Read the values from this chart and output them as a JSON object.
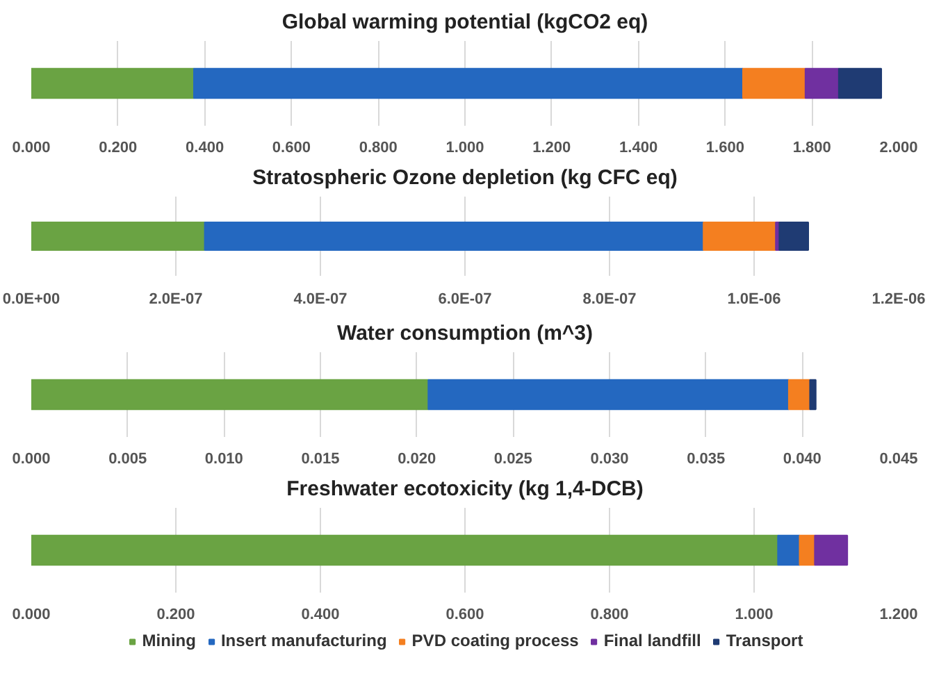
{
  "chart_data": [
    {
      "type": "bar",
      "orientation": "horizontal",
      "stacked": true,
      "title": "Global warming potential (kgCO2 eq)",
      "categories": [
        null
      ],
      "xlim": [
        0,
        2.0
      ],
      "xticks": [
        {
          "value": 0,
          "label": "0.000"
        },
        {
          "value": 0.2,
          "label": "0.200"
        },
        {
          "value": 0.4,
          "label": "0.400"
        },
        {
          "value": 0.6,
          "label": "0.600"
        },
        {
          "value": 0.8,
          "label": "0.800"
        },
        {
          "value": 1.0,
          "label": "1.000"
        },
        {
          "value": 1.2,
          "label": "1.200"
        },
        {
          "value": 1.4,
          "label": "1.400"
        },
        {
          "value": 1.6,
          "label": "1.600"
        },
        {
          "value": 1.8,
          "label": "1.800"
        },
        {
          "value": 2.0,
          "label": "2.000"
        }
      ],
      "grid": "x",
      "tick_labels": "x",
      "legend": false,
      "series": [
        {
          "color": "#6aa343",
          "values": [
            0.375
          ]
        },
        {
          "color": "#2468c0",
          "values": [
            1.266
          ]
        },
        {
          "color": "#f47f20",
          "values": [
            0.144
          ]
        },
        {
          "color": "#7030a0",
          "values": [
            0.077
          ]
        },
        {
          "color": "#1f3b73",
          "values": [
            0.098
          ]
        }
      ]
    },
    {
      "type": "bar",
      "orientation": "horizontal",
      "stacked": true,
      "title": "Stratospheric Ozone depletion (kg CFC eq)",
      "categories": [
        null
      ],
      "xlim": [
        0,
        1.2e-06
      ],
      "xticks": [
        {
          "value": 0,
          "label": "0.0E+00"
        },
        {
          "value": 2e-07,
          "label": "2.0E-07"
        },
        {
          "value": 4e-07,
          "label": "4.0E-07"
        },
        {
          "value": 6e-07,
          "label": "6.0E-07"
        },
        {
          "value": 8e-07,
          "label": "8.0E-07"
        },
        {
          "value": 1e-06,
          "label": "1.0E-06"
        },
        {
          "value": 1.2e-06,
          "label": "1.2E-06"
        }
      ],
      "grid": "x",
      "tick_labels": "x",
      "legend": false,
      "series": [
        {
          "color": "#6aa343",
          "values": [
            2.4e-07
          ]
        },
        {
          "color": "#2468c0",
          "values": [
            6.9e-07
          ]
        },
        {
          "color": "#f47f20",
          "values": [
            1e-07
          ]
        },
        {
          "color": "#7030a0",
          "values": [
            5e-09
          ]
        },
        {
          "color": "#1f3b73",
          "values": [
            4e-08
          ]
        }
      ]
    },
    {
      "type": "bar",
      "orientation": "horizontal",
      "stacked": true,
      "title": "Water consumption (m^3)",
      "categories": [
        null
      ],
      "xlim": [
        0,
        0.045
      ],
      "xticks": [
        {
          "value": 0,
          "label": "0.000"
        },
        {
          "value": 0.005,
          "label": "0.005"
        },
        {
          "value": 0.01,
          "label": "0.010"
        },
        {
          "value": 0.015,
          "label": "0.015"
        },
        {
          "value": 0.02,
          "label": "0.020"
        },
        {
          "value": 0.025,
          "label": "0.025"
        },
        {
          "value": 0.03,
          "label": "0.030"
        },
        {
          "value": 0.035,
          "label": "0.035"
        },
        {
          "value": 0.04,
          "label": "0.040"
        },
        {
          "value": 0.045,
          "label": "0.045"
        }
      ],
      "grid": "x",
      "tick_labels": "x",
      "legend": false,
      "series": [
        {
          "color": "#6aa343",
          "values": [
            0.0206
          ]
        },
        {
          "color": "#2468c0",
          "values": [
            0.0187
          ]
        },
        {
          "color": "#f47f20",
          "values": [
            0.0011
          ]
        },
        {
          "color": "#7030a0",
          "values": [
            null
          ]
        },
        {
          "color": "#1f3b73",
          "values": [
            0.0003
          ]
        }
      ]
    },
    {
      "type": "bar",
      "orientation": "horizontal",
      "stacked": true,
      "title": "Freshwater ecotoxicity (kg 1,4-DCB)",
      "categories": [
        null
      ],
      "xlim": [
        0,
        1.2
      ],
      "xticks": [
        {
          "value": 0,
          "label": "0.000"
        },
        {
          "value": 0.2,
          "label": "0.200"
        },
        {
          "value": 0.4,
          "label": "0.400"
        },
        {
          "value": 0.6,
          "label": "0.600"
        },
        {
          "value": 0.8,
          "label": "0.800"
        },
        {
          "value": 1.0,
          "label": "1.000"
        },
        {
          "value": 1.2,
          "label": "1.200"
        }
      ],
      "grid": "x",
      "tick_labels": "x",
      "legend": "bottom",
      "series": [
        {
          "name": "Mining",
          "color": "#6aa343",
          "values": [
            1.033
          ]
        },
        {
          "name": "Insert manufacturing",
          "color": "#2468c0",
          "values": [
            0.03
          ]
        },
        {
          "name": "PVD coating process",
          "color": "#f47f20",
          "values": [
            0.021
          ]
        },
        {
          "name": "Final landfill",
          "color": "#7030a0",
          "values": [
            0.045
          ]
        },
        {
          "name": "Transport",
          "color": "#1f3b73",
          "values": [
            null
          ]
        }
      ]
    }
  ]
}
